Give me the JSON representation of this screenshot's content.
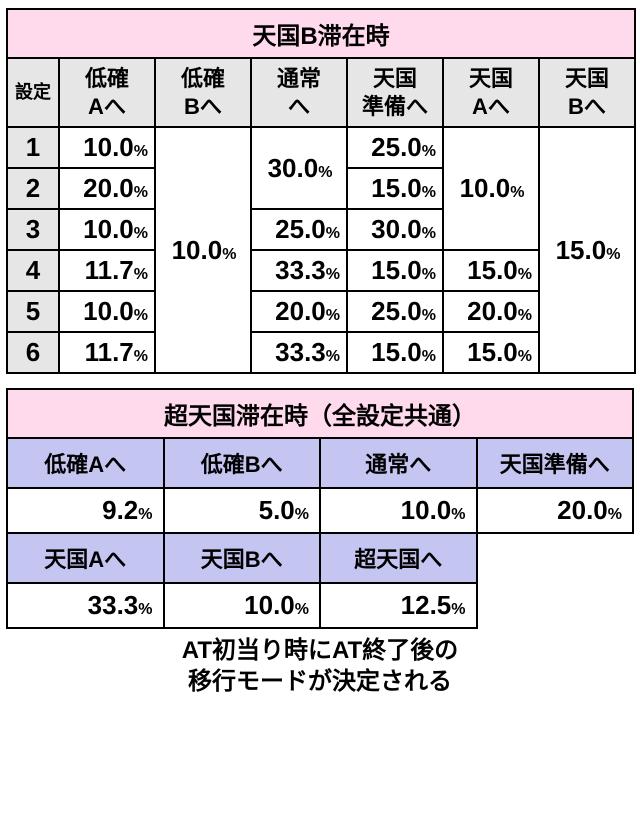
{
  "table1": {
    "title": "天国B滞在時",
    "row_header_label": "設定",
    "columns": [
      "低確\nAへ",
      "低確\nBへ",
      "通常\nへ",
      "天国\n準備へ",
      "天国\nAへ",
      "天国\nBへ"
    ],
    "settings": [
      "1",
      "2",
      "3",
      "4",
      "5",
      "6"
    ],
    "teikakuA": [
      "10.0",
      "20.0",
      "10.0",
      "11.7",
      "10.0",
      "11.7"
    ],
    "teikakuB_merged": "10.0",
    "tsuujou_12": "30.0",
    "tsuujou": {
      "3": "25.0",
      "4": "33.3",
      "5": "20.0",
      "6": "33.3"
    },
    "junbi": {
      "1": "25.0",
      "2": "15.0",
      "3": "30.0",
      "4": "15.0",
      "5": "25.0",
      "6": "15.0"
    },
    "tengokuA_123": "10.0",
    "tengokuA": {
      "4": "15.0",
      "5": "20.0",
      "6": "15.0"
    },
    "tengokuB_merged": "15.0",
    "pct_label": "%"
  },
  "table2": {
    "title": "超天国滞在時（全設定共通）",
    "row1_headers": [
      "低確Aへ",
      "低確Bへ",
      "通常へ",
      "天国準備へ"
    ],
    "row1_values": [
      "9.2",
      "5.0",
      "10.0",
      "20.0"
    ],
    "row2_headers": [
      "天国Aへ",
      "天国Bへ",
      "超天国へ"
    ],
    "row2_values": [
      "33.3",
      "10.0",
      "12.5"
    ],
    "pct_label": "%"
  },
  "footer": {
    "line1": "AT初当り時にAT終了後の",
    "line2": "移行モードが決定される"
  }
}
